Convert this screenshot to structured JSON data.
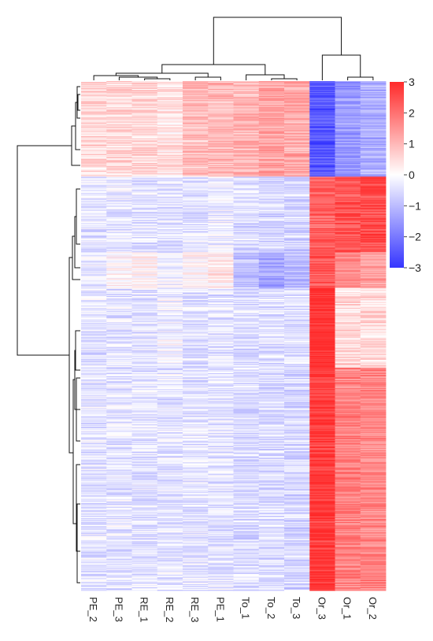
{
  "chart_data": {
    "type": "heatmap",
    "title": "",
    "xlabel": "",
    "ylabel": "",
    "columns": [
      "PE_2",
      "PE_3",
      "RE_1",
      "RE_2",
      "RE_3",
      "PE_1",
      "To_1",
      "To_2",
      "To_3",
      "Or_3",
      "Or_1",
      "Or_2"
    ],
    "row_clusters": [
      {
        "rows": 120,
        "values": [
          0.5,
          0.6,
          0.6,
          0.4,
          0.9,
          1.0,
          1.0,
          1.3,
          1.2,
          -2.5,
          -1.5,
          -1.2
        ]
      },
      {
        "rows": 95,
        "values": [
          -0.4,
          -0.3,
          -0.4,
          -0.4,
          -0.4,
          -0.3,
          -0.5,
          -0.6,
          -0.6,
          2.2,
          2.4,
          2.5
        ]
      },
      {
        "rows": 45,
        "values": [
          -0.3,
          0.2,
          0.1,
          -0.2,
          0.1,
          0.3,
          -0.9,
          -1.3,
          -1.1,
          2.4,
          1.6,
          1.4
        ]
      },
      {
        "rows": 100,
        "values": [
          -0.4,
          -0.4,
          -0.4,
          -0.2,
          -0.4,
          -0.4,
          -0.5,
          -0.5,
          -0.5,
          3.0,
          0.5,
          0.5
        ]
      },
      {
        "rows": 280,
        "values": [
          -0.4,
          -0.4,
          -0.4,
          -0.4,
          -0.4,
          -0.4,
          -0.5,
          -0.5,
          -0.6,
          2.8,
          1.8,
          1.7
        ]
      }
    ],
    "color_scale": {
      "min": -3,
      "max": 3,
      "low": "#3535ff",
      "mid": "#ffffff",
      "high": "#ff2a2a"
    },
    "legend": {
      "ticks": [
        3,
        2,
        1,
        0,
        -1,
        -2,
        -3
      ],
      "position": "top-right"
    },
    "column_dendrogram": true,
    "row_dendrogram": true
  }
}
